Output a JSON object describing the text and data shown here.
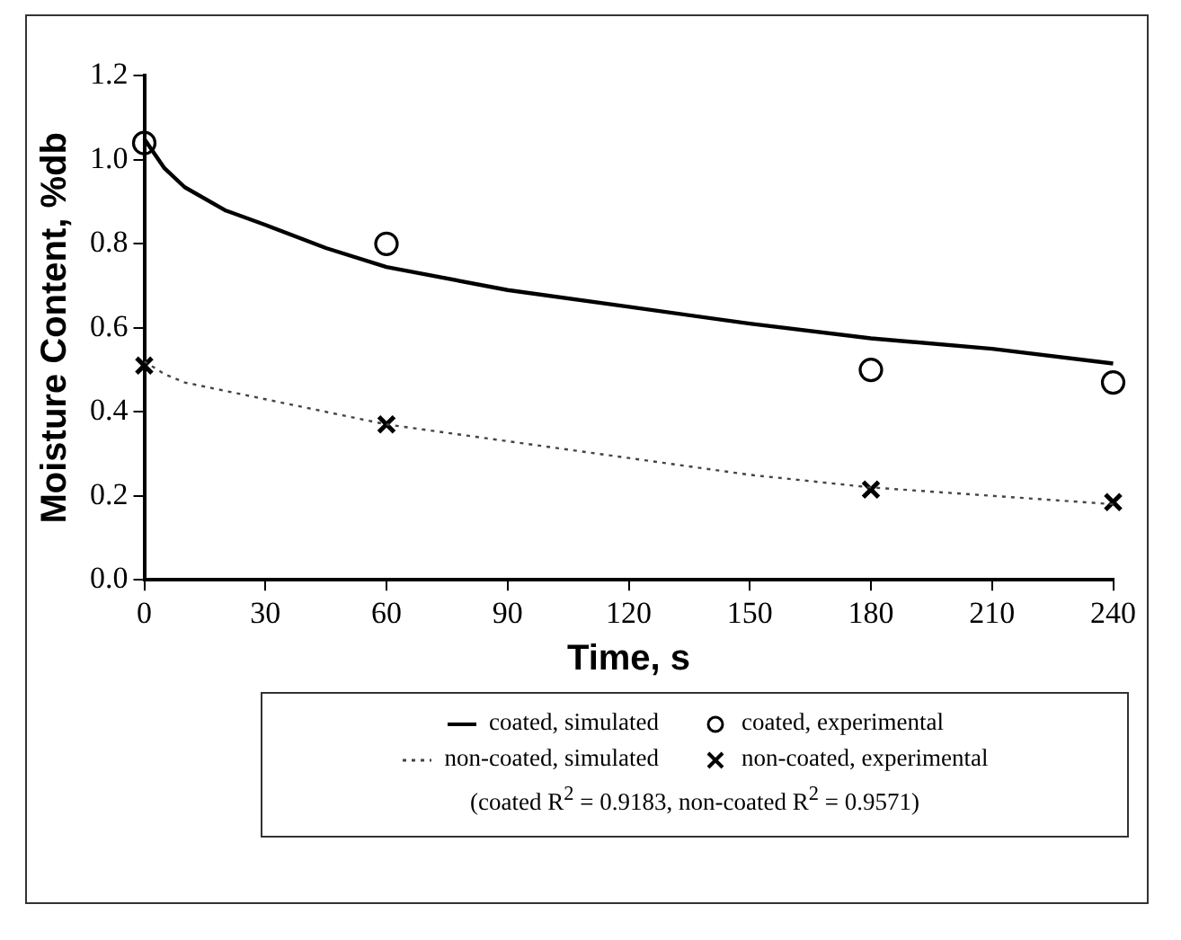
{
  "chart_data": {
    "type": "line",
    "xlabel": "Time, s",
    "ylabel": "Moisture Content, %db",
    "xlim": [
      0,
      240
    ],
    "xticks": [
      0,
      30,
      60,
      90,
      120,
      150,
      180,
      210,
      240
    ],
    "ylim": [
      0,
      1.2
    ],
    "yticks": [
      {
        "value": 0,
        "label": "0.0"
      },
      {
        "value": 0.2,
        "label": "0.2"
      },
      {
        "value": 0.4,
        "label": "0.4"
      },
      {
        "value": 0.6,
        "label": "0.6"
      },
      {
        "value": 0.8,
        "label": "0.8"
      },
      {
        "value": 1,
        "label": "1.0"
      },
      {
        "value": 1.2,
        "label": "1.2"
      }
    ],
    "grid": false,
    "legend": "bottom",
    "series": [
      {
        "name": "coated, simulated",
        "line_style": "solid",
        "marker": "none",
        "color": "#000000",
        "x": [
          0,
          5,
          10,
          20,
          30,
          45,
          60,
          90,
          120,
          150,
          180,
          210,
          240
        ],
        "values": [
          1.05,
          0.98,
          0.935,
          0.88,
          0.845,
          0.79,
          0.745,
          0.69,
          0.65,
          0.61,
          0.575,
          0.55,
          0.515
        ]
      },
      {
        "name": "coated, experimental",
        "type": "scatter",
        "marker": "circle",
        "color": "#000000",
        "x": [
          0,
          60,
          180,
          240
        ],
        "values": [
          1.04,
          0.8,
          0.5,
          0.47
        ]
      },
      {
        "name": "non-coated, simulated",
        "line_style": "dotted",
        "marker": "none",
        "color": "#444444",
        "x": [
          0,
          5,
          10,
          20,
          30,
          45,
          60,
          90,
          120,
          150,
          180,
          210,
          240
        ],
        "values": [
          0.52,
          0.49,
          0.47,
          0.45,
          0.43,
          0.4,
          0.37,
          0.33,
          0.29,
          0.25,
          0.22,
          0.2,
          0.18
        ]
      },
      {
        "name": "non-coated, experimental",
        "type": "scatter",
        "marker": "cross",
        "color": "#000000",
        "x": [
          0,
          60,
          180,
          240
        ],
        "values": [
          0.51,
          0.37,
          0.215,
          0.185
        ]
      }
    ],
    "annotations": [
      "(coated R$^{2}$ = 0.9183, non-coated R$^{2}$ = 0.9571)"
    ]
  }
}
